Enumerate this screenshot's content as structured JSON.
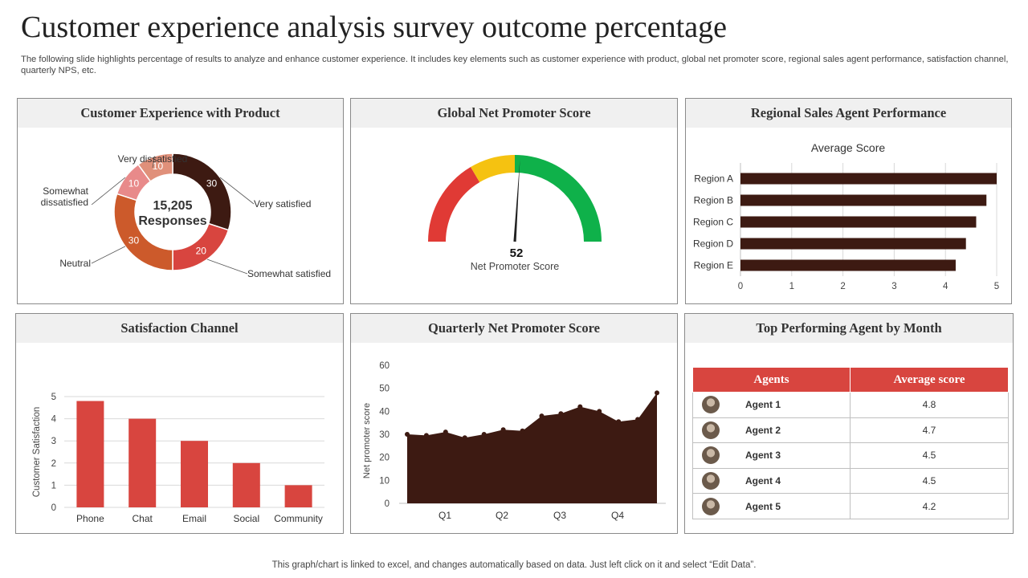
{
  "page": {
    "title": "Customer experience analysis survey outcome percentage",
    "subtitle": "The following slide highlights percentage of results to analyze and enhance customer experience. It includes key elements such as customer experience with product, global net promoter score, regional sales agent performance, satisfaction channel, quarterly NPS, etc.",
    "footer": "This graph/chart is linked to excel,  and changes automatically based on data. Just left click on it and select “Edit Data”."
  },
  "panels": {
    "product": {
      "title": "Customer Experience with Product"
    },
    "nps": {
      "title": "Global Net Promoter Score"
    },
    "regional": {
      "title": "Regional Sales Agent Performance"
    },
    "channel": {
      "title": "Satisfaction Channel"
    },
    "quarterly": {
      "title": "Quarterly Net Promoter Score"
    },
    "agents": {
      "title": "Top Performing Agent by Month"
    }
  },
  "chart_data": [
    {
      "type": "pie",
      "variant": "donut",
      "center_value": "15,205",
      "center_label": "Responses",
      "slices": [
        {
          "label": "Very satisfied",
          "value": 30,
          "color": "#3d1a12"
        },
        {
          "label": "Somewhat satisfied",
          "value": 20,
          "color": "#d8453f"
        },
        {
          "label": "Neutral",
          "value": 30,
          "color": "#cc5a2b"
        },
        {
          "label": "Somewhat dissatisfied",
          "value": 10,
          "color": "#e88a8a"
        },
        {
          "label": "Very dissatisfied",
          "value": 10,
          "color": "#e0907a"
        }
      ]
    },
    {
      "type": "gauge",
      "value": 52,
      "label": "Net Promoter Score",
      "range": [
        0,
        100
      ],
      "bands": [
        {
          "from": 0,
          "to": 33,
          "color": "#e03a35"
        },
        {
          "from": 33,
          "to": 50,
          "color": "#f5c211"
        },
        {
          "from": 50,
          "to": 100,
          "color": "#0fb14a"
        }
      ]
    },
    {
      "type": "bar",
      "orientation": "horizontal",
      "title": "Average Score",
      "categories": [
        "Region A",
        "Region B",
        "Region C",
        "Region D",
        "Region E"
      ],
      "values": [
        5.0,
        4.8,
        4.6,
        4.4,
        4.2
      ],
      "xlim": [
        0,
        5
      ],
      "xticks": [
        "0",
        "1",
        "2",
        "3",
        "4",
        "5"
      ],
      "color": "#3d1a12",
      "grid": true
    },
    {
      "type": "bar",
      "categories": [
        "Phone",
        "Chat",
        "Email",
        "Social",
        "Community"
      ],
      "values": [
        4.8,
        4,
        3,
        2,
        1
      ],
      "ylabel": "Customer Satisfaction",
      "ylim": [
        0,
        5
      ],
      "yticks": [
        "0",
        "1",
        "2",
        "3",
        "4",
        "5"
      ],
      "color": "#d8453f",
      "grid": true
    },
    {
      "type": "area",
      "ylabel": "Net promoter score",
      "x_tick_labels": [
        "Q1",
        "Q2",
        "Q3",
        "Q4"
      ],
      "ylim": [
        0,
        60
      ],
      "yticks": [
        "0",
        "10",
        "20",
        "30",
        "40",
        "50",
        "60"
      ],
      "values": [
        30,
        29.5,
        31,
        28.5,
        30,
        32,
        31.5,
        38,
        39,
        42,
        40,
        35.5,
        36.5,
        48
      ],
      "color": "#3d1a12"
    },
    {
      "type": "table",
      "columns": [
        "Agents",
        "Average score"
      ],
      "rows": [
        {
          "agent": "Agent 1",
          "score": "4.8"
        },
        {
          "agent": "Agent 2",
          "score": "4.7"
        },
        {
          "agent": "Agent 3",
          "score": "4.5"
        },
        {
          "agent": "Agent 4",
          "score": "4.5"
        },
        {
          "agent": "Agent 5",
          "score": "4.2"
        }
      ]
    }
  ]
}
